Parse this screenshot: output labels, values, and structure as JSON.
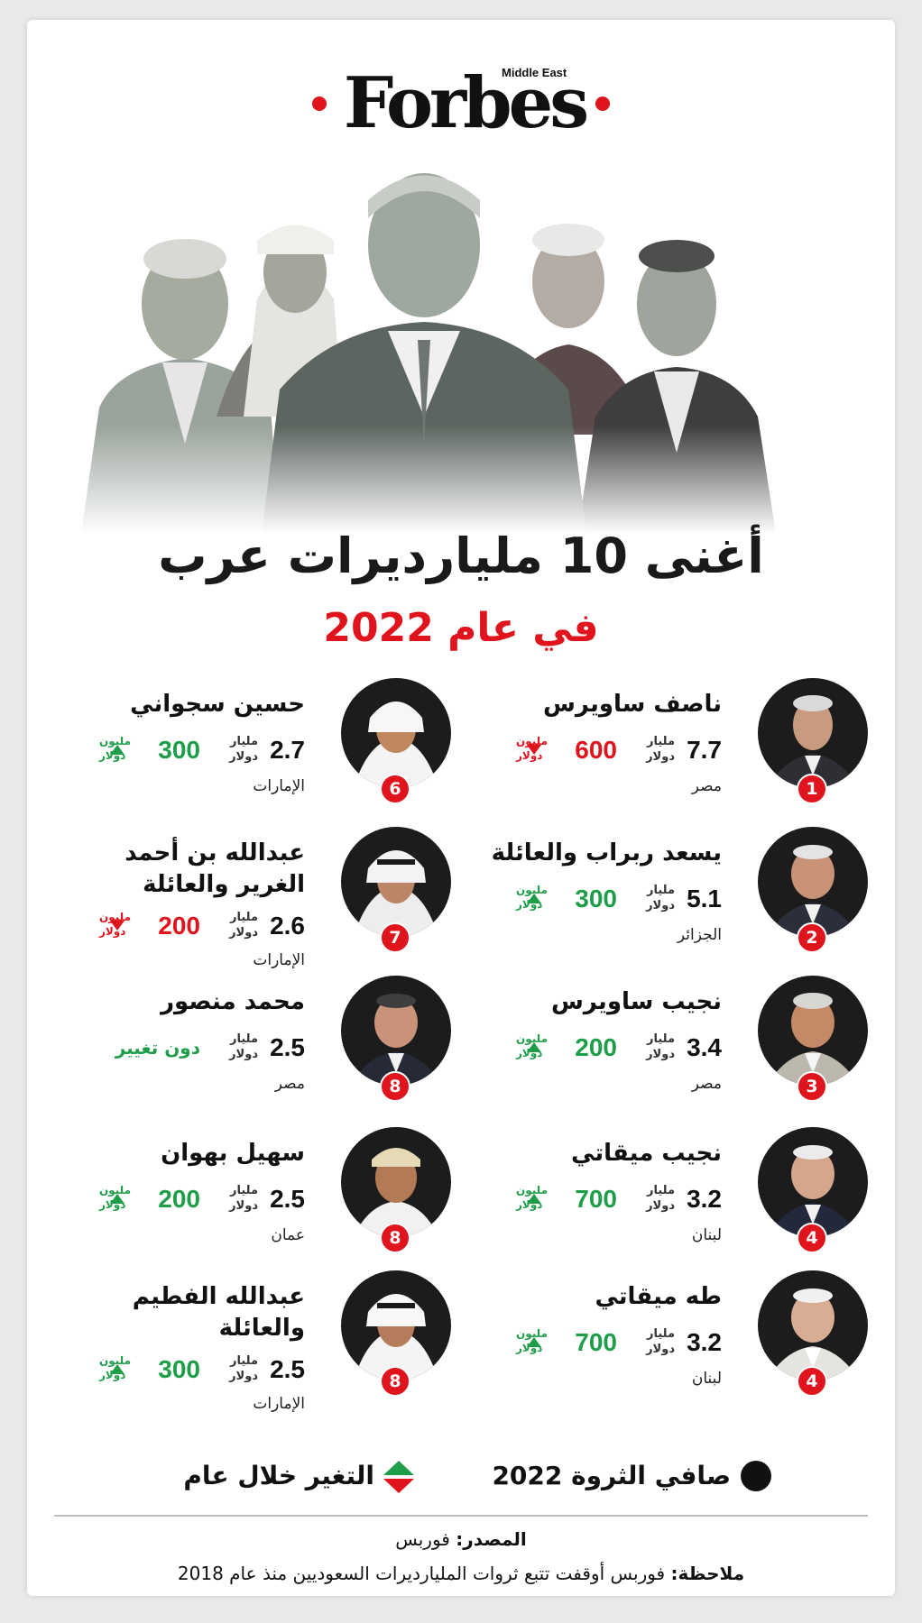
{
  "header": {
    "logo": "Forbes",
    "logo_sub": "Middle East",
    "title": "أغنى 10 مليارديرات عرب",
    "subtitle": "في عام 2022"
  },
  "units": {
    "billion_line1": "مليار",
    "billion_line2": "دولار",
    "million_line1": "مليون",
    "million_line2": "دولار"
  },
  "entries": [
    {
      "rank": "1",
      "name": "ناصف ساويرس",
      "worth": "7.7",
      "change": "600",
      "direction": "down",
      "country": "مصر"
    },
    {
      "rank": "2",
      "name": "يسعد ربراب والعائلة",
      "worth": "5.1",
      "change": "300",
      "direction": "up",
      "country": "الجزائر"
    },
    {
      "rank": "3",
      "name": "نجيب ساويرس",
      "worth": "3.4",
      "change": "200",
      "direction": "up",
      "country": "مصر"
    },
    {
      "rank": "4",
      "name": "نجيب ميقاتي",
      "worth": "3.2",
      "change": "700",
      "direction": "up",
      "country": "لبنان"
    },
    {
      "rank": "4",
      "name": "طه ميقاتي",
      "worth": "3.2",
      "change": "700",
      "direction": "up",
      "country": "لبنان"
    },
    {
      "rank": "6",
      "name": "حسين سجواني",
      "worth": "2.7",
      "change": "300",
      "direction": "up",
      "country": "الإمارات"
    },
    {
      "rank": "7",
      "name_line1": "عبدالله بن أحمد",
      "name_line2": "الغرير والعائلة",
      "worth": "2.6",
      "change": "200",
      "direction": "down",
      "country": "الإمارات"
    },
    {
      "rank": "8",
      "name": "محمد منصور",
      "worth": "2.5",
      "change_text": "دون تغيير",
      "country": "مصر"
    },
    {
      "rank": "8",
      "name": "سهيل بهوان",
      "worth": "2.5",
      "change": "200",
      "direction": "up",
      "country": "عمان"
    },
    {
      "rank": "8",
      "name_line1": "عبدالله الفطيم",
      "name_line2": "والعائلة",
      "worth": "2.5",
      "change": "300",
      "direction": "up",
      "country": "الإمارات"
    }
  ],
  "legend": {
    "net_worth": "صافي الثروة 2022",
    "change": "التغير خلال عام"
  },
  "footer": {
    "source_label": "المصدر:",
    "source_value": "فوربس",
    "note_label": "ملاحظة:",
    "note_value": "فوربس أوقفت تتبع ثروات المليارديرات السعوديين منذ عام 2018"
  },
  "colors": {
    "brand_red": "#e0141d",
    "up_green": "#1f9e4a",
    "text": "#111111"
  }
}
